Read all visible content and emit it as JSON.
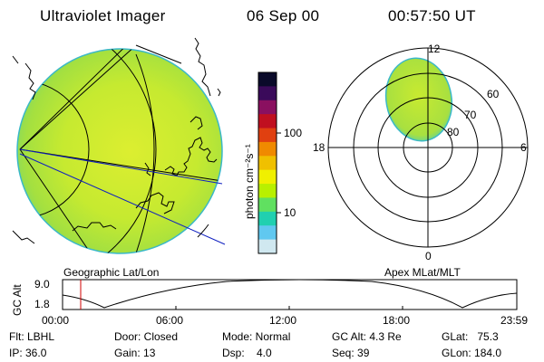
{
  "header": {
    "title": "Ultraviolet Imager",
    "date": "06 Sep 00",
    "time": "00:57:50 UT"
  },
  "images": {
    "left_caption": "Geographic Lat/Lon",
    "right_caption": "Apex MLat/MLT"
  },
  "colorbar": {
    "label": "photon cm⁻²s⁻¹",
    "ticks": [
      "100",
      "10"
    ],
    "scale": "log",
    "colors": [
      "#0a0a2a",
      "#3a0a5a",
      "#8a1060",
      "#c01020",
      "#e04010",
      "#f08a00",
      "#f0c000",
      "#f0f000",
      "#b8f000",
      "#60e060",
      "#20d0b0",
      "#60c8f0",
      "#d0e8f0"
    ]
  },
  "polar": {
    "mlt_labels": {
      "top": "12",
      "left": "18",
      "right": "6",
      "bottom": "0"
    },
    "lat_labels": [
      "60",
      "70",
      "80"
    ]
  },
  "altitude_plot": {
    "ylabel": "GC Alt",
    "yticks": [
      "9.0",
      "1.8"
    ],
    "xticks": [
      "00:00",
      "06:00",
      "12:00",
      "18:00",
      "23:59"
    ],
    "current_time_fraction": 0.04
  },
  "info": {
    "flt": "Flt: LBHL",
    "ip": "IP: 36.0",
    "door": "Door: Closed",
    "gain": "Gain: 13",
    "mode": "Mode: Normal",
    "dsp": "Dsp:    4.0",
    "gcalt": "GC Alt: 4.3 Re",
    "seq": "Seq: 39",
    "glat": "GLat:   75.3",
    "glon": "GLon: 184.0"
  }
}
